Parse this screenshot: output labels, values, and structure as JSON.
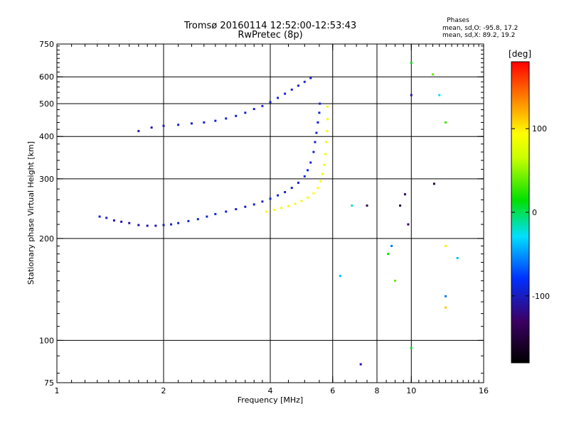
{
  "chart_data": {
    "type": "scatter",
    "title": "Tromsø 20160114 12:52:00-12:53:43",
    "subtitle": "RwPretec (8p)",
    "xlabel": "Frequency [MHz]",
    "ylabel": "Stationary phase Virtual Height [km]",
    "x_scale": "log2",
    "y_scale": "log",
    "xlim": [
      1,
      16
    ],
    "ylim": [
      75,
      750
    ],
    "x_ticks": [
      1,
      2,
      4,
      6,
      8,
      10,
      16
    ],
    "x_tick_labels": [
      "1",
      "2",
      "4",
      "6",
      "8",
      "10",
      "16"
    ],
    "y_ticks": [
      75,
      100,
      200,
      300,
      400,
      500,
      600,
      750
    ],
    "y_tick_labels": [
      "75",
      "100",
      "200",
      "300",
      "400",
      "500",
      "600",
      "750"
    ],
    "x_gridlines": [
      1,
      2,
      4,
      6,
      8,
      10
    ],
    "y_gridlines": [
      100,
      200,
      300,
      400,
      500,
      600
    ],
    "grid": true,
    "annotation": {
      "heading": "Phases",
      "line1": "mean, sd,O: -95.8, 17.2",
      "line2": "mean, sd,X:  89.2, 19.2"
    },
    "colorbar": {
      "label": "deg",
      "range": [
        -180,
        180
      ],
      "ticks": [
        100,
        0,
        -100
      ],
      "tick_labels": [
        "100",
        "0",
        "-100"
      ]
    },
    "series": [
      {
        "points": [
          [
            1.32,
            232,
            -95
          ],
          [
            1.38,
            230,
            -100
          ],
          [
            1.45,
            226,
            -105
          ],
          [
            1.52,
            224,
            -110
          ],
          [
            1.6,
            222,
            -108
          ],
          [
            1.7,
            219,
            -112
          ],
          [
            1.8,
            218,
            -110
          ],
          [
            1.9,
            218,
            -105
          ],
          [
            2.0,
            219,
            -100
          ],
          [
            2.1,
            220,
            -98
          ],
          [
            2.2,
            222,
            -95
          ],
          [
            2.35,
            225,
            -92
          ],
          [
            2.5,
            228,
            -95
          ],
          [
            2.65,
            232,
            -90
          ],
          [
            2.8,
            236,
            -88
          ],
          [
            3.0,
            240,
            -92
          ],
          [
            3.2,
            244,
            -95
          ],
          [
            3.4,
            248,
            -100
          ],
          [
            3.6,
            252,
            -98
          ],
          [
            3.8,
            257,
            -95
          ],
          [
            4.0,
            262,
            -93
          ],
          [
            4.2,
            268,
            -95
          ],
          [
            4.4,
            274,
            -98
          ],
          [
            4.6,
            282,
            -96
          ],
          [
            4.8,
            292,
            -94
          ],
          [
            5.0,
            305,
            -92
          ],
          [
            5.1,
            318,
            -90
          ],
          [
            5.2,
            335,
            -92
          ],
          [
            5.3,
            360,
            -95
          ],
          [
            5.35,
            385,
            -98
          ],
          [
            5.4,
            410,
            -96
          ],
          [
            5.45,
            440,
            -95
          ],
          [
            5.5,
            470,
            -94
          ],
          [
            5.52,
            500,
            -96
          ]
        ]
      },
      {
        "points": [
          [
            1.7,
            415,
            -110
          ],
          [
            1.85,
            425,
            -108
          ],
          [
            2.0,
            430,
            -105
          ],
          [
            2.2,
            433,
            -100
          ],
          [
            2.4,
            437,
            -98
          ],
          [
            2.6,
            440,
            -95
          ],
          [
            2.8,
            445,
            -92
          ],
          [
            3.0,
            452,
            -95
          ],
          [
            3.2,
            460,
            -96
          ],
          [
            3.4,
            470,
            -98
          ],
          [
            3.6,
            482,
            -100
          ],
          [
            3.8,
            492,
            -95
          ],
          [
            4.0,
            505,
            -93
          ],
          [
            4.2,
            520,
            -95
          ],
          [
            4.4,
            535,
            -96
          ],
          [
            4.6,
            550,
            -98
          ],
          [
            4.8,
            565,
            -95
          ],
          [
            5.0,
            580,
            -94
          ],
          [
            5.2,
            595,
            -96
          ]
        ]
      },
      {
        "points": [
          [
            3.9,
            240,
            95
          ],
          [
            4.1,
            243,
            92
          ],
          [
            4.3,
            246,
            90
          ],
          [
            4.5,
            249,
            88
          ],
          [
            4.7,
            253,
            86
          ],
          [
            4.9,
            258,
            88
          ],
          [
            5.1,
            264,
            90
          ],
          [
            5.3,
            272,
            92
          ],
          [
            5.45,
            282,
            95
          ],
          [
            5.55,
            295,
            93
          ],
          [
            5.62,
            310,
            90
          ],
          [
            5.68,
            330,
            88
          ],
          [
            5.72,
            355,
            90
          ],
          [
            5.75,
            385,
            92
          ],
          [
            5.78,
            415,
            94
          ],
          [
            5.8,
            450,
            90
          ],
          [
            5.8,
            490,
            88
          ]
        ]
      },
      {
        "points": [
          [
            6.3,
            155,
            -40
          ],
          [
            6.8,
            250,
            -20
          ],
          [
            7.2,
            85,
            -110
          ],
          [
            7.5,
            250,
            -140
          ],
          [
            8.6,
            180,
            20
          ],
          [
            8.8,
            190,
            -60
          ],
          [
            9.0,
            150,
            40
          ],
          [
            9.3,
            250,
            -150
          ],
          [
            9.6,
            270,
            -140
          ],
          [
            9.8,
            220,
            -130
          ],
          [
            10.0,
            660,
            10
          ],
          [
            10.0,
            530,
            -110
          ],
          [
            10.0,
            95,
            5
          ],
          [
            11.5,
            610,
            40
          ],
          [
            11.6,
            290,
            -150
          ],
          [
            12.0,
            530,
            -30
          ],
          [
            12.5,
            440,
            30
          ],
          [
            12.5,
            190,
            100
          ],
          [
            12.5,
            135,
            -60
          ],
          [
            12.5,
            125,
            115
          ],
          [
            13.5,
            175,
            -40
          ]
        ]
      }
    ]
  }
}
